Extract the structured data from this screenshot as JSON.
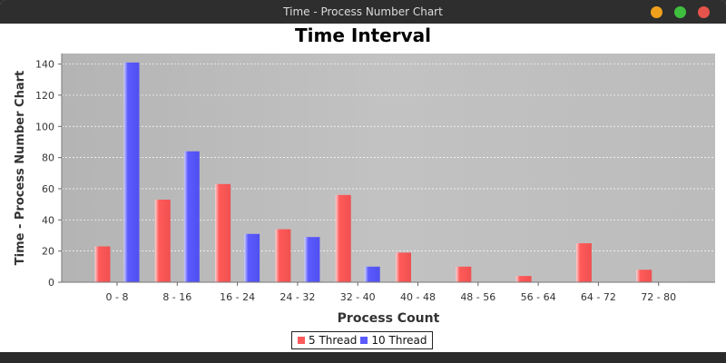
{
  "window": {
    "title": "Time - Process Number Chart"
  },
  "colors": {
    "series_5": "#ff5a5a",
    "series_10": "#5a5aff",
    "plot_bg": "#c0c0c0"
  },
  "chart_data": {
    "type": "bar",
    "title": "Time Interval",
    "xlabel": "Process Count",
    "ylabel": "Time - Process Number Chart",
    "ylim": [
      0,
      145
    ],
    "yticks": [
      0,
      20,
      40,
      60,
      80,
      100,
      120,
      140
    ],
    "grid": true,
    "legend_position": "bottom",
    "categories": [
      "0 - 8",
      "8 - 16",
      "16 - 24",
      "24 - 32",
      "32 - 40",
      "40 - 48",
      "48 - 56",
      "56 - 64",
      "64 - 72",
      "72 - 80"
    ],
    "series": [
      {
        "name": "5 Thread",
        "values": [
          23,
          53,
          63,
          34,
          56,
          19,
          10,
          4,
          25,
          8
        ]
      },
      {
        "name": "10 Thread",
        "values": [
          141,
          84,
          31,
          29,
          10,
          0,
          0,
          0,
          0,
          0
        ]
      }
    ]
  }
}
